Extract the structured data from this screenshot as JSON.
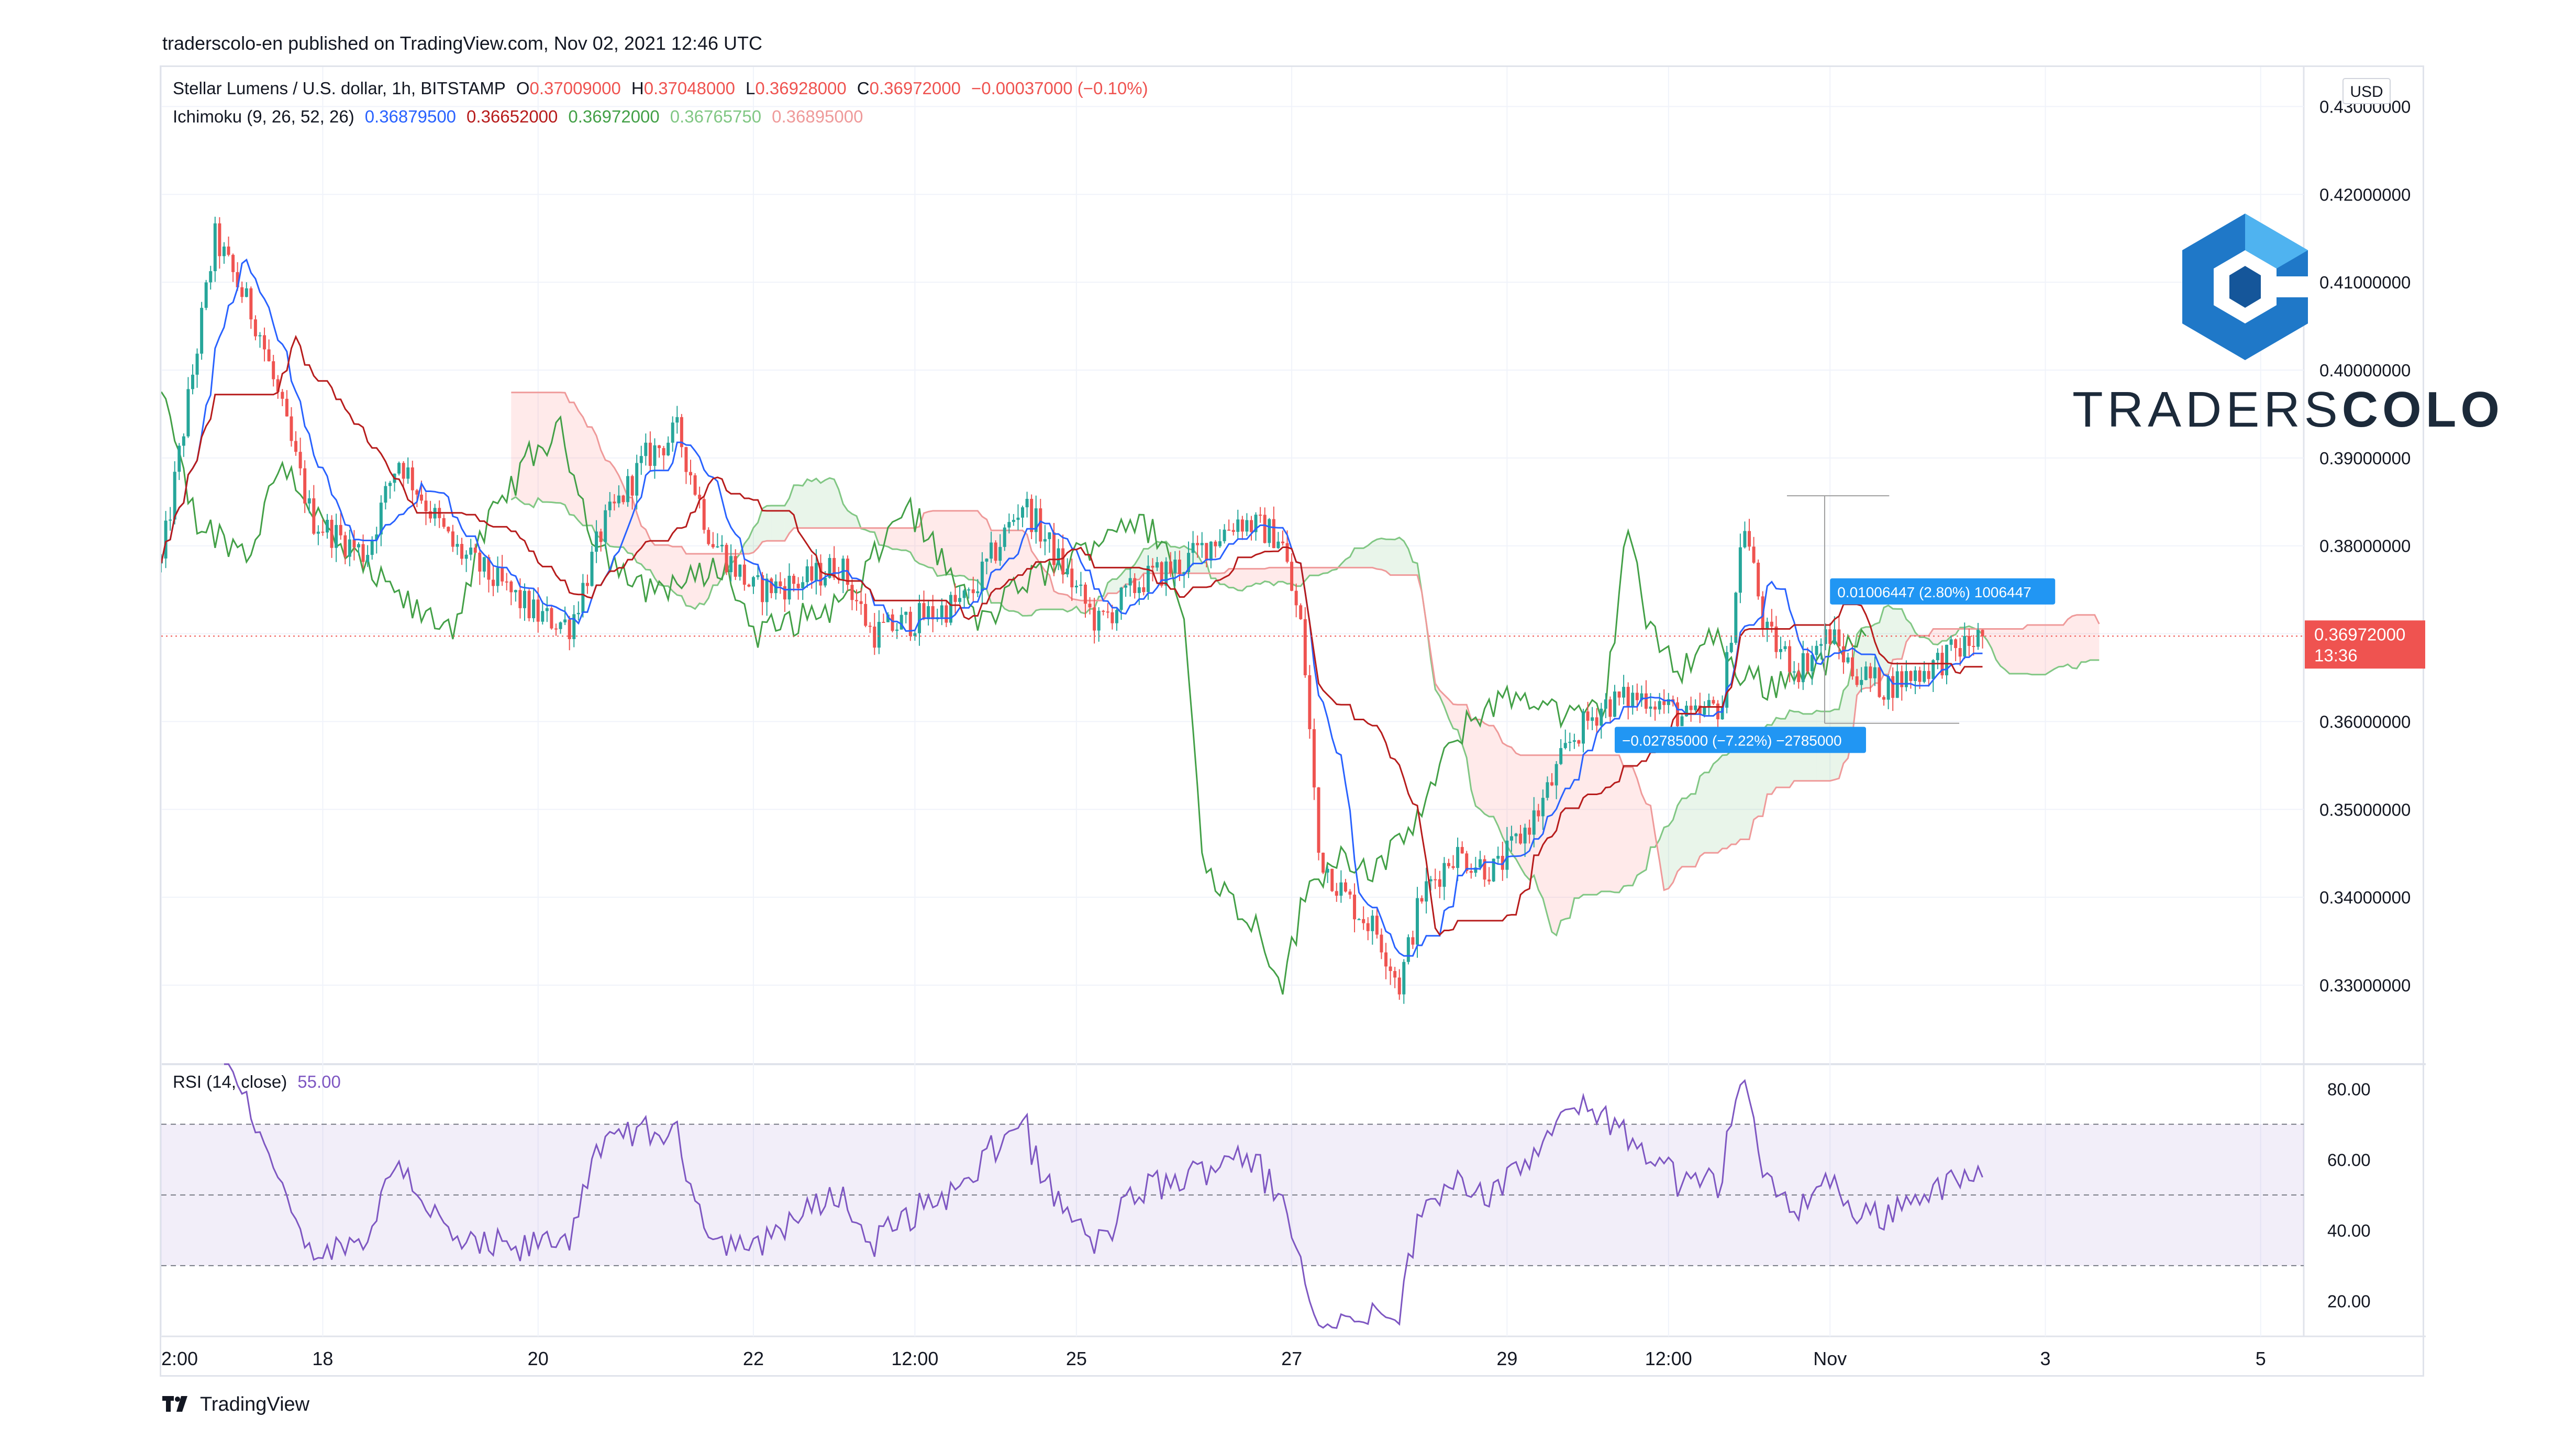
{
  "header": {
    "published": "traderscolo-en published on TradingView.com, Nov 02, 2021 12:46 UTC"
  },
  "legend": {
    "symbol": "Stellar Lumens / U.S. dollar, 1h, BITSTAMP",
    "o_label": "O",
    "o": "0.37009000",
    "h_label": "H",
    "h": "0.37048000",
    "l_label": "L",
    "l": "0.36928000",
    "c_label": "C",
    "c": "0.36972000",
    "change": "−0.00037000 (−0.10%)",
    "ichimoku_label": "Ichimoku (9, 26, 52, 26)",
    "ich_values": [
      "0.36879500",
      "0.36652000",
      "0.36972000",
      "0.36765750",
      "0.36895000"
    ],
    "rsi_label": "RSI (14, close)",
    "rsi_value": "55.00"
  },
  "colors": {
    "up": "#26a69a",
    "down": "#ef5350",
    "tenkan": "#2962ff",
    "kijun": "#b71c1c",
    "chikou": "#43a047",
    "spanA": "#81c784",
    "spanB": "#ef9a9a",
    "rsi": "#7e57c2",
    "accent": "#2196f3",
    "price_tag": "#ef5350"
  },
  "currency": "USD",
  "price_tag": {
    "price": "0.36972000",
    "countdown": "13:36"
  },
  "measure": {
    "up_label": "0.01006447 (2.80%) 1006447",
    "down_label": "−0.02785000 (−7.22%) −2785000"
  },
  "brand": {
    "text_light": "TRADERS",
    "text_bold": "COLO"
  },
  "footer": {
    "logo_text": "TradingView"
  },
  "chart_data": [
    {
      "type": "candlestick",
      "title": "Stellar Lumens / U.S. dollar, 1h, BITSTAMP",
      "ylabel": "USD",
      "ylim": [
        0.321,
        0.4345
      ],
      "y_ticks": [
        "0.43000000",
        "0.42000000",
        "0.41000000",
        "0.40000000",
        "0.39000000",
        "0.38000000",
        "0.37000000",
        "0.36000000",
        "0.35000000",
        "0.34000000",
        "0.33000000"
      ],
      "y_tick_values": [
        0.43,
        0.42,
        0.41,
        0.4,
        0.39,
        0.38,
        0.37,
        0.36,
        0.35,
        0.34,
        0.33
      ],
      "x_ticks": [
        "2:00",
        "18",
        "20",
        "22",
        "12:00",
        "25",
        "27",
        "29",
        "12:00",
        "Nov",
        "3",
        "5"
      ],
      "x_tick_days": [
        16.5,
        18,
        20,
        22,
        23.5,
        25,
        27,
        29,
        30.5,
        32,
        34,
        36
      ],
      "x_range_days": [
        16.5,
        36.4
      ],
      "last_day": 33.4,
      "last_price": 0.36972,
      "key_points": [
        [
          16.5,
          0.378
        ],
        [
          17.0,
          0.415
        ],
        [
          17.4,
          0.405
        ],
        [
          17.9,
          0.383
        ],
        [
          18.4,
          0.379
        ],
        [
          18.7,
          0.39
        ],
        [
          19.2,
          0.38
        ],
        [
          19.6,
          0.376
        ],
        [
          20.0,
          0.372
        ],
        [
          20.3,
          0.371
        ],
        [
          20.6,
          0.382
        ],
        [
          21.0,
          0.39
        ],
        [
          21.3,
          0.393
        ],
        [
          21.6,
          0.381
        ],
        [
          22.0,
          0.375
        ],
        [
          22.5,
          0.376
        ],
        [
          22.8,
          0.378
        ],
        [
          23.1,
          0.37
        ],
        [
          23.6,
          0.372
        ],
        [
          24.0,
          0.374
        ],
        [
          24.5,
          0.385
        ],
        [
          24.9,
          0.377
        ],
        [
          25.2,
          0.371
        ],
        [
          25.6,
          0.376
        ],
        [
          26.0,
          0.378
        ],
        [
          26.5,
          0.383
        ],
        [
          26.9,
          0.381
        ],
        [
          27.0,
          0.375
        ],
        [
          27.1,
          0.37
        ],
        [
          27.25,
          0.345
        ],
        [
          27.5,
          0.34
        ],
        [
          27.8,
          0.336
        ],
        [
          28.0,
          0.33
        ],
        [
          28.2,
          0.34
        ],
        [
          28.5,
          0.345
        ],
        [
          28.9,
          0.343
        ],
        [
          29.3,
          0.35
        ],
        [
          29.6,
          0.358
        ],
        [
          29.9,
          0.362
        ],
        [
          30.3,
          0.363
        ],
        [
          30.7,
          0.36
        ],
        [
          31.0,
          0.362
        ],
        [
          31.2,
          0.383
        ],
        [
          31.4,
          0.37
        ],
        [
          31.7,
          0.366
        ],
        [
          32.0,
          0.37
        ],
        [
          32.2,
          0.366
        ],
        [
          32.5,
          0.364
        ],
        [
          32.9,
          0.366
        ],
        [
          33.4,
          0.3697
        ]
      ],
      "hourly_noise": 0.0018
    },
    {
      "type": "line",
      "title": "RSI (14, close)",
      "ylim": [
        10,
        87
      ],
      "y_ticks": [
        "80.00",
        "60.00",
        "40.00",
        "20.00"
      ],
      "y_tick_values": [
        80,
        60,
        40,
        20
      ],
      "bands": {
        "upper": 70,
        "middle": 50,
        "lower": 30
      },
      "current_value": 55.0
    }
  ]
}
